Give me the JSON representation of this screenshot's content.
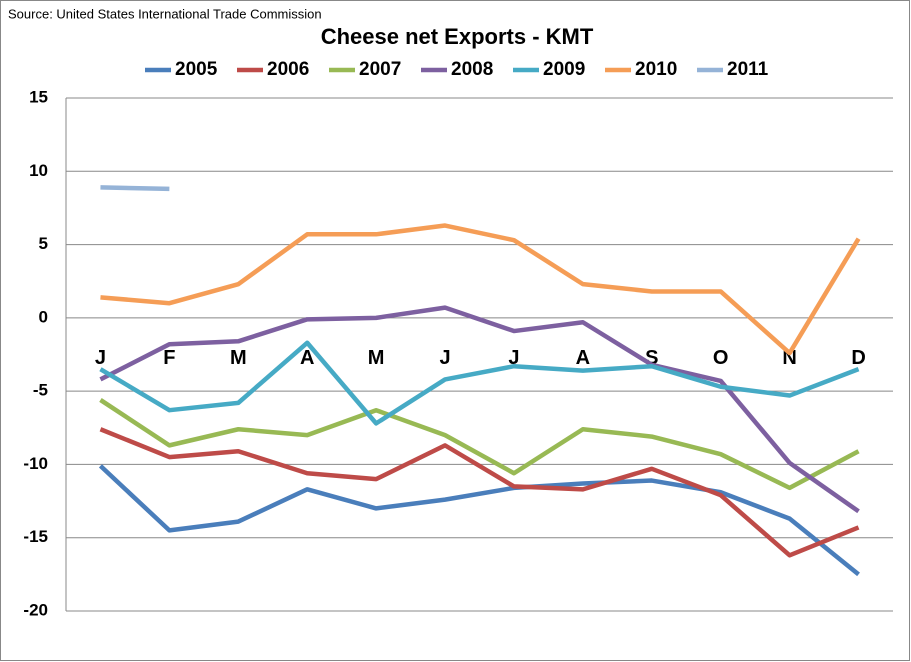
{
  "chart_data": {
    "type": "line",
    "source": "Source: United States International Trade Commission",
    "title": "Cheese net Exports - KMT",
    "categories": [
      "J",
      "F",
      "M",
      "A",
      "M",
      "J",
      "J",
      "A",
      "S",
      "O",
      "N",
      "D"
    ],
    "series": [
      {
        "name": "2005",
        "color": "#4a7ebb",
        "values": [
          -10.1,
          -14.5,
          -13.9,
          -11.7,
          -13.0,
          -12.4,
          -11.6,
          -11.3,
          -11.1,
          -11.9,
          -13.7,
          -17.5
        ]
      },
      {
        "name": "2006",
        "color": "#be4b48",
        "values": [
          -7.6,
          -9.5,
          -9.1,
          -10.6,
          -11.0,
          -8.7,
          -11.5,
          -11.7,
          -10.3,
          -12.1,
          -16.2,
          -14.3
        ]
      },
      {
        "name": "2007",
        "color": "#98b954",
        "values": [
          -5.6,
          -8.7,
          -7.6,
          -8.0,
          -6.3,
          -8.0,
          -10.6,
          -7.6,
          -8.1,
          -9.3,
          -11.6,
          -9.1
        ]
      },
      {
        "name": "2008",
        "color": "#7d60a0",
        "values": [
          -4.2,
          -1.8,
          -1.6,
          -0.1,
          0,
          0.7,
          -0.9,
          -0.3,
          -3.2,
          -4.3,
          -9.9,
          -13.2
        ]
      },
      {
        "name": "2009",
        "color": "#46aac5",
        "values": [
          -3.5,
          -6.3,
          -5.8,
          -1.7,
          -7.2,
          -4.2,
          -3.3,
          -3.6,
          -3.3,
          -4.7,
          -5.3,
          -3.5
        ]
      },
      {
        "name": "2010",
        "color": "#f59d56",
        "values": [
          1.4,
          1.0,
          2.3,
          5.7,
          5.7,
          6.3,
          5.3,
          2.3,
          1.8,
          1.8,
          -2.4,
          5.4
        ]
      },
      {
        "name": "2011",
        "color": "#95b3d7",
        "values": [
          8.9,
          8.8,
          null,
          null,
          null,
          null,
          null,
          null,
          null,
          null,
          null,
          null
        ]
      }
    ],
    "ylim": [
      -20,
      15
    ],
    "yticks": [
      15,
      10,
      5,
      0,
      -5,
      -10,
      -15,
      -20
    ],
    "grid": true,
    "legend": "top"
  }
}
